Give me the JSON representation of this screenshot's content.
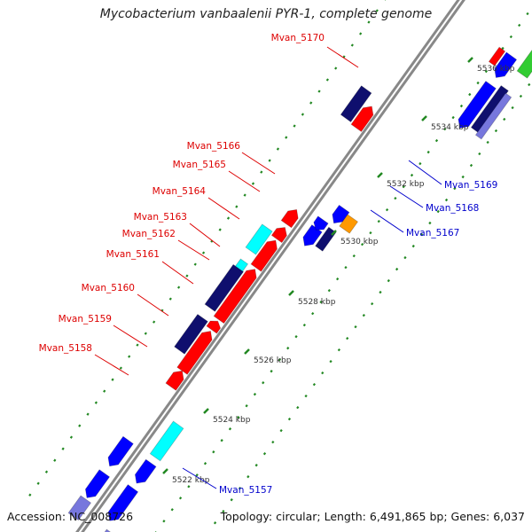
{
  "title": "Mycobacterium vanbaalenii PYR-1, complete genome",
  "footer": {
    "accession": "Accession: NC_008726",
    "summary": "Topology: circular; Length: 6,491,865 bp; Genes: 6,037"
  },
  "colors": {
    "forward_label": "#dd0000",
    "reverse_label": "#0000cc",
    "gene_red": "#ff0000",
    "gene_navy": "#0f0f6e",
    "gene_blue": "#0000ff",
    "gene_cyan": "#00ffff",
    "gene_orange": "#ff9900",
    "gene_green": "#33cc33",
    "gene_lavender": "#7777dd",
    "backbone": "#888888",
    "tick": "#228822"
  },
  "ticks": [
    "5522 kbp",
    "5524 kbp",
    "5526 kbp",
    "5528 kbp",
    "5530 kbp",
    "5532 kbp",
    "5534 kbp",
    "5536 kbp"
  ],
  "gene_labels": [
    {
      "name": "Mvan_5170",
      "strand": "forward"
    },
    {
      "name": "Mvan_5166",
      "strand": "forward"
    },
    {
      "name": "Mvan_5165",
      "strand": "forward"
    },
    {
      "name": "Mvan_5164",
      "strand": "forward"
    },
    {
      "name": "Mvan_5163",
      "strand": "forward"
    },
    {
      "name": "Mvan_5162",
      "strand": "forward"
    },
    {
      "name": "Mvan_5161",
      "strand": "forward"
    },
    {
      "name": "Mvan_5160",
      "strand": "forward"
    },
    {
      "name": "Mvan_5159",
      "strand": "forward"
    },
    {
      "name": "Mvan_5158",
      "strand": "forward"
    },
    {
      "name": "Mvan_5169",
      "strand": "reverse"
    },
    {
      "name": "Mvan_5168",
      "strand": "reverse"
    },
    {
      "name": "Mvan_5167",
      "strand": "reverse"
    },
    {
      "name": "Mvan_5157",
      "strand": "reverse"
    }
  ]
}
